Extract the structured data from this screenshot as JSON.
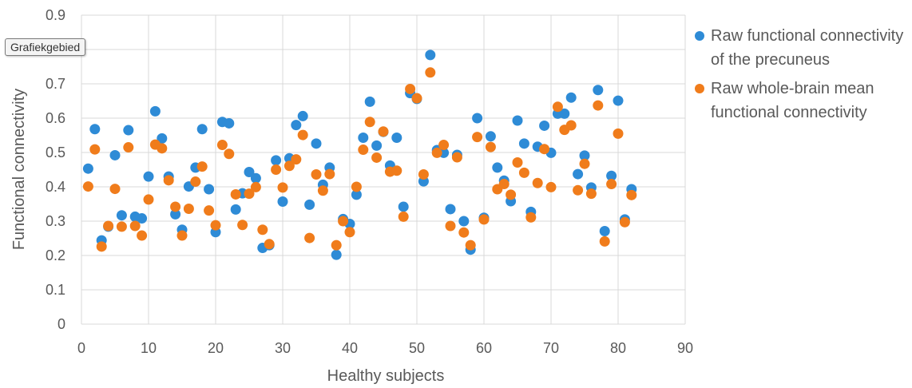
{
  "tooltip_text": "Grafiekgebied",
  "chart_data": {
    "type": "scatter",
    "title": "",
    "xlabel": "Healthy subjects",
    "ylabel": "Functional connectivity",
    "xlim": [
      0,
      90
    ],
    "ylim": [
      0,
      0.9
    ],
    "x_ticks": [
      "0",
      "10",
      "20",
      "30",
      "40",
      "50",
      "60",
      "70",
      "80",
      "90"
    ],
    "y_ticks": [
      "0",
      "0.1",
      "0.2",
      "0.3",
      "0.4",
      "0.5",
      "0.6",
      "0.7",
      "0.8",
      "0.9"
    ],
    "grid": true,
    "legend_position": "right",
    "series": [
      {
        "name": "Raw functional connectivity of the precuneus",
        "color": "#2e8bd6",
        "points": [
          [
            1,
            0.453
          ],
          [
            2,
            0.568
          ],
          [
            3,
            0.244
          ],
          [
            4,
            0.284
          ],
          [
            5,
            0.492
          ],
          [
            6,
            0.317
          ],
          [
            7,
            0.565
          ],
          [
            8,
            0.313
          ],
          [
            9,
            0.308
          ],
          [
            10,
            0.43
          ],
          [
            11,
            0.62
          ],
          [
            12,
            0.541
          ],
          [
            13,
            0.43
          ],
          [
            14,
            0.32
          ],
          [
            15,
            0.275
          ],
          [
            16,
            0.401
          ],
          [
            17,
            0.456
          ],
          [
            18,
            0.568
          ],
          [
            19,
            0.393
          ],
          [
            20,
            0.268
          ],
          [
            21,
            0.589
          ],
          [
            22,
            0.585
          ],
          [
            23,
            0.334
          ],
          [
            24,
            0.381
          ],
          [
            25,
            0.443
          ],
          [
            26,
            0.425
          ],
          [
            27,
            0.222
          ],
          [
            28,
            0.23
          ],
          [
            29,
            0.477
          ],
          [
            30,
            0.357
          ],
          [
            31,
            0.483
          ],
          [
            32,
            0.58
          ],
          [
            33,
            0.606
          ],
          [
            34,
            0.348
          ],
          [
            35,
            0.526
          ],
          [
            36,
            0.406
          ],
          [
            37,
            0.456
          ],
          [
            38,
            0.202
          ],
          [
            39,
            0.306
          ],
          [
            40,
            0.292
          ],
          [
            41,
            0.377
          ],
          [
            42,
            0.543
          ],
          [
            43,
            0.648
          ],
          [
            44,
            0.52
          ],
          [
            45,
            0.56
          ],
          [
            46,
            0.462
          ],
          [
            47,
            0.543
          ],
          [
            48,
            0.342
          ],
          [
            49,
            0.673
          ],
          [
            50,
            0.656
          ],
          [
            51,
            0.416
          ],
          [
            52,
            0.784
          ],
          [
            53,
            0.507
          ],
          [
            54,
            0.499
          ],
          [
            55,
            0.335
          ],
          [
            56,
            0.493
          ],
          [
            57,
            0.3
          ],
          [
            58,
            0.217
          ],
          [
            59,
            0.6
          ],
          [
            60,
            0.31
          ],
          [
            61,
            0.547
          ],
          [
            62,
            0.456
          ],
          [
            63,
            0.418
          ],
          [
            64,
            0.358
          ],
          [
            65,
            0.593
          ],
          [
            66,
            0.526
          ],
          [
            67,
            0.327
          ],
          [
            68,
            0.517
          ],
          [
            69,
            0.578
          ],
          [
            70,
            0.499
          ],
          [
            71,
            0.613
          ],
          [
            72,
            0.613
          ],
          [
            73,
            0.66
          ],
          [
            74,
            0.437
          ],
          [
            75,
            0.491
          ],
          [
            76,
            0.398
          ],
          [
            77,
            0.682
          ],
          [
            78,
            0.271
          ],
          [
            79,
            0.432
          ],
          [
            80,
            0.651
          ],
          [
            81,
            0.305
          ],
          [
            82,
            0.393
          ]
        ]
      },
      {
        "name": "Raw whole-brain mean functional connectivity",
        "color": "#f07c1b",
        "points": [
          [
            1,
            0.401
          ],
          [
            2,
            0.509
          ],
          [
            3,
            0.226
          ],
          [
            4,
            0.286
          ],
          [
            5,
            0.394
          ],
          [
            6,
            0.284
          ],
          [
            7,
            0.515
          ],
          [
            8,
            0.286
          ],
          [
            9,
            0.258
          ],
          [
            10,
            0.363
          ],
          [
            11,
            0.523
          ],
          [
            12,
            0.512
          ],
          [
            13,
            0.419
          ],
          [
            14,
            0.342
          ],
          [
            15,
            0.258
          ],
          [
            16,
            0.336
          ],
          [
            17,
            0.415
          ],
          [
            18,
            0.459
          ],
          [
            19,
            0.331
          ],
          [
            20,
            0.288
          ],
          [
            21,
            0.522
          ],
          [
            22,
            0.496
          ],
          [
            23,
            0.378
          ],
          [
            24,
            0.289
          ],
          [
            25,
            0.38
          ],
          [
            26,
            0.399
          ],
          [
            27,
            0.275
          ],
          [
            28,
            0.233
          ],
          [
            29,
            0.45
          ],
          [
            30,
            0.398
          ],
          [
            31,
            0.461
          ],
          [
            32,
            0.48
          ],
          [
            33,
            0.551
          ],
          [
            34,
            0.251
          ],
          [
            35,
            0.436
          ],
          [
            36,
            0.389
          ],
          [
            37,
            0.437
          ],
          [
            38,
            0.23
          ],
          [
            39,
            0.3
          ],
          [
            40,
            0.268
          ],
          [
            41,
            0.4
          ],
          [
            42,
            0.508
          ],
          [
            43,
            0.589
          ],
          [
            44,
            0.485
          ],
          [
            45,
            0.561
          ],
          [
            46,
            0.444
          ],
          [
            47,
            0.447
          ],
          [
            48,
            0.313
          ],
          [
            49,
            0.685
          ],
          [
            50,
            0.658
          ],
          [
            51,
            0.436
          ],
          [
            52,
            0.733
          ],
          [
            53,
            0.499
          ],
          [
            54,
            0.522
          ],
          [
            55,
            0.286
          ],
          [
            56,
            0.486
          ],
          [
            57,
            0.267
          ],
          [
            58,
            0.23
          ],
          [
            59,
            0.545
          ],
          [
            60,
            0.305
          ],
          [
            61,
            0.516
          ],
          [
            62,
            0.393
          ],
          [
            63,
            0.408
          ],
          [
            64,
            0.377
          ],
          [
            65,
            0.471
          ],
          [
            66,
            0.441
          ],
          [
            67,
            0.311
          ],
          [
            68,
            0.411
          ],
          [
            69,
            0.51
          ],
          [
            70,
            0.399
          ],
          [
            71,
            0.633
          ],
          [
            72,
            0.566
          ],
          [
            73,
            0.579
          ],
          [
            74,
            0.39
          ],
          [
            75,
            0.467
          ],
          [
            76,
            0.38
          ],
          [
            77,
            0.637
          ],
          [
            78,
            0.241
          ],
          [
            79,
            0.408
          ],
          [
            80,
            0.555
          ],
          [
            81,
            0.297
          ],
          [
            82,
            0.376
          ]
        ]
      }
    ]
  }
}
